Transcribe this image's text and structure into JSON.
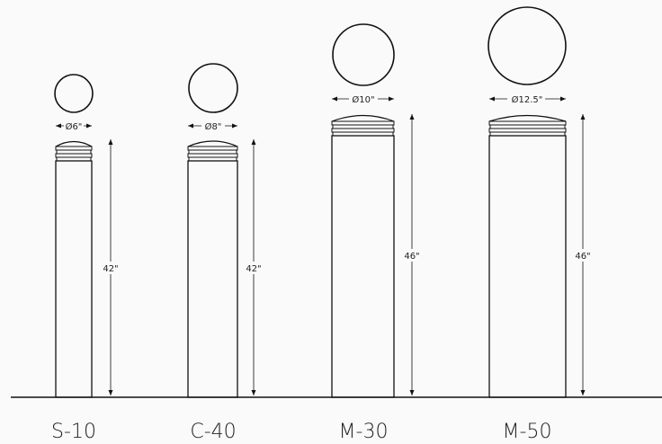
{
  "bollards": [
    {
      "model": "S-10",
      "diameter_label": "Ø6\"",
      "height_label": "42\"",
      "diameter_in": 6,
      "height_in": 42
    },
    {
      "model": "C-40",
      "diameter_label": "Ø8\"",
      "height_label": "42\"",
      "diameter_in": 8,
      "height_in": 42
    },
    {
      "model": "M-30",
      "diameter_label": "Ø10\"",
      "height_label": "46\"",
      "diameter_in": 10,
      "height_in": 46
    },
    {
      "model": "M-50",
      "diameter_label": "Ø12.5\"",
      "height_label": "46\"",
      "diameter_in": 12.5,
      "height_in": 46
    }
  ]
}
